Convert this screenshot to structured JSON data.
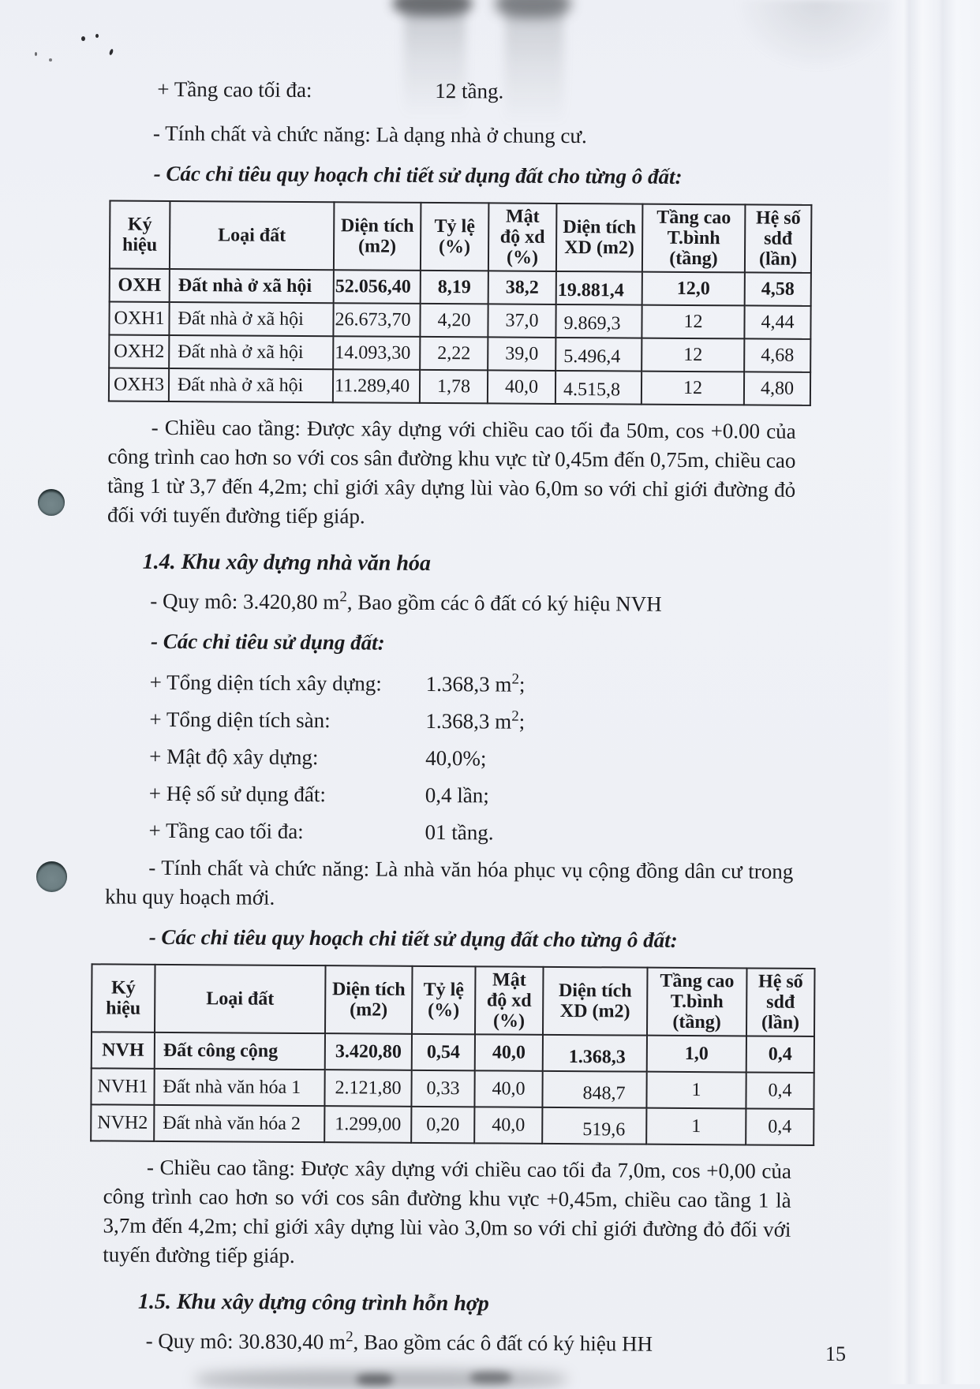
{
  "intro": {
    "max_floors_label": "+ Tầng cao tối đa:",
    "max_floors_value": "12 tầng.",
    "function_line": "- Tính chất và chức năng: Là dạng nhà ở chung cư.",
    "criteria_table_heading": "- Các chỉ tiêu quy hoạch chi tiết sử dụng đất cho từng ô đất:"
  },
  "table1": {
    "headers": [
      "Ký\nhiệu",
      "Loại đất",
      "Diện tích\n(m2)",
      "Tỷ lệ\n(%)",
      "Mật\nđộ xd\n(%)",
      "Diện tích\nXD (m2)",
      "Tầng cao\nT.bình\n(tầng)",
      "Hệ số\nsdđ\n(lần)"
    ],
    "rows": [
      [
        "OXH",
        "Đất nhà ở xã hội",
        "52.056,40",
        "8,19",
        "38,2",
        "19.881,4",
        "12,0",
        "4,58"
      ],
      [
        "OXH1",
        "Đất nhà ở xã hội",
        "26.673,70",
        "4,20",
        "37,0",
        "9.869,3",
        "12",
        "4,44"
      ],
      [
        "OXH2",
        "Đất nhà ở xã hội",
        "14.093,30",
        "2,22",
        "39,0",
        "5.496,4",
        "12",
        "4,68"
      ],
      [
        "OXH3",
        "Đất nhà ở xã hội",
        "11.289,40",
        "1,78",
        "40,0",
        "4.515,8",
        "12",
        "4,80"
      ]
    ],
    "note": "- Chiều cao tầng: Được xây dựng với chiều cao tối đa 50m, cos +0.00 của công trình cao hơn so với cos sân đường khu vực từ 0,45m đến 0,75m, chiều cao tầng 1 từ 3,7 đến 4,2m; chỉ giới xây dựng lùi vào 6,0m so với chỉ giới đường đỏ đối với tuyến đường tiếp giáp."
  },
  "section14": {
    "heading": "1.4. Khu xây dựng nhà văn hóa",
    "scale_prefix": "- Quy mô: 3.420,80 m",
    "scale_sup": "2",
    "scale_suffix": ", Bao gồm các ô đất có ký hiệu NVH",
    "criteria_heading": "- Các chỉ tiêu sử dụng đất:",
    "indicators": [
      {
        "label": "+ Tổng diện tích xây dựng:",
        "value": "1.368,3 m",
        "sup": "2",
        "tail": ";"
      },
      {
        "label": "+ Tổng diện tích sàn:",
        "value": "1.368,3 m",
        "sup": "2",
        "tail": ";"
      },
      {
        "label": "+ Mật độ xây dựng:",
        "value": "40,0%",
        "sup": "",
        "tail": ";"
      },
      {
        "label": "+ Hệ số sử dụng đất:",
        "value": "0,4 lần",
        "sup": "",
        "tail": ";"
      },
      {
        "label": "+ Tầng cao tối đa:",
        "value": "01 tầng",
        "sup": "",
        "tail": "."
      }
    ],
    "function_line": "- Tính chất và chức năng: Là nhà văn hóa phục vụ cộng đồng dân cư trong khu quy hoạch mới.",
    "criteria_table_heading": "- Các chỉ tiêu quy hoạch chi tiết sử dụng đất cho từng ô đất:"
  },
  "table2": {
    "headers": [
      "Ký\nhiệu",
      "Loại đất",
      "Diện tích\n(m2)",
      "Tỷ lệ\n(%)",
      "Mật\nđộ xd\n(%)",
      "Diện tích\nXD (m2)",
      "Tầng cao\nT.bình\n(tầng)",
      "Hệ số\nsdđ\n(lần)"
    ],
    "rows": [
      [
        "NVH",
        "Đất công cộng",
        "3.420,80",
        "0,54",
        "40,0",
        "1.368,3",
        "1,0",
        "0,4"
      ],
      [
        "NVH1",
        "Đất nhà văn hóa 1",
        "2.121,80",
        "0,33",
        "40,0",
        "848,7",
        "1",
        "0,4"
      ],
      [
        "NVH2",
        "Đất nhà văn hóa 2",
        "1.299,00",
        "0,20",
        "40,0",
        "519,6",
        "1",
        "0,4"
      ]
    ],
    "note": "- Chiều cao tầng: Được xây dựng với chiều cao tối đa 7,0m, cos +0,00 của công trình cao hơn so với cos sân đường khu vực +0,45m, chiều cao tầng 1 là 3,7m đến 4,2m; chỉ giới xây dựng lùi vào 3,0m so với chỉ giới đường đỏ đối với tuyến đường tiếp giáp."
  },
  "section15": {
    "heading": "1.5. Khu xây dựng công trình hỗn hợp",
    "scale_prefix": "- Quy mô: 30.830,40 m",
    "scale_sup": "2",
    "scale_suffix": ", Bao gồm các ô đất có ký hiệu HH"
  },
  "page_number": "15"
}
